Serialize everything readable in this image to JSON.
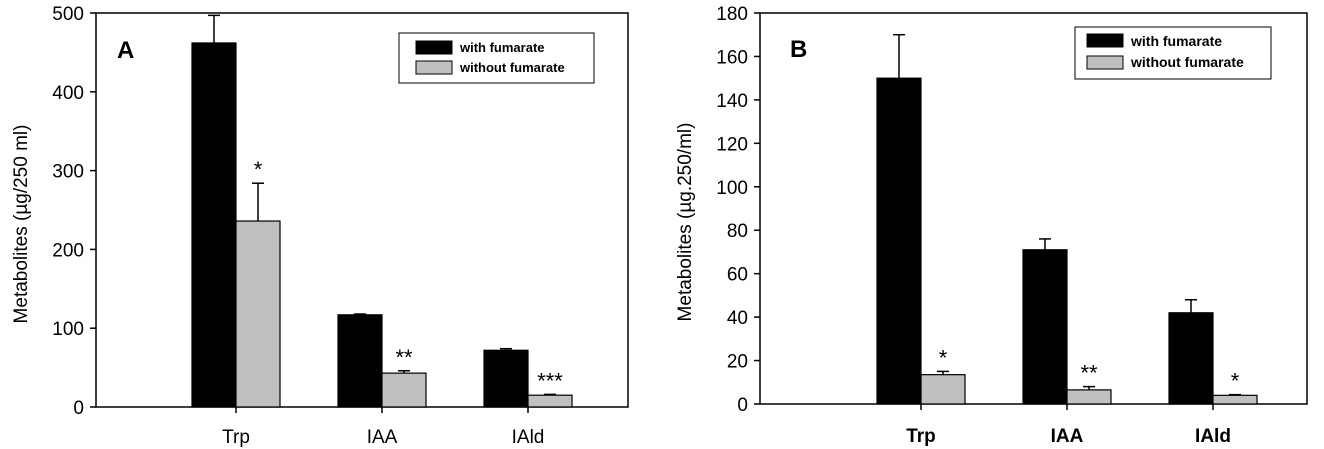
{
  "chart_data": [
    {
      "type": "bar",
      "panel_label": "A",
      "categories": [
        "Trp",
        "IAA",
        "IAld"
      ],
      "ylabel": "Metabolites (µg/250 ml)",
      "ylim": [
        0,
        500
      ],
      "yticks": [
        0,
        100,
        200,
        300,
        400,
        500
      ],
      "grid": false,
      "legend_position": "top-right",
      "series": [
        {
          "name": "with fumarate",
          "color": "#000000",
          "values": [
            462,
            117,
            72
          ],
          "errors": [
            35,
            1,
            2
          ]
        },
        {
          "name": "without fumarate",
          "color": "#c0c0c0",
          "values": [
            236,
            43,
            15
          ],
          "errors": [
            48,
            3,
            1
          ]
        }
      ],
      "annotations": [
        "*",
        "**",
        "***"
      ]
    },
    {
      "type": "bar",
      "panel_label": "B",
      "categories": [
        "Trp",
        "IAA",
        "IAld"
      ],
      "ylabel": "Metabolites (µg.250/ml)",
      "ylim": [
        0,
        180
      ],
      "yticks": [
        0,
        20,
        40,
        60,
        80,
        100,
        120,
        140,
        160,
        180
      ],
      "grid": false,
      "legend_position": "top-right",
      "series": [
        {
          "name": "with  fumarate",
          "color": "#000000",
          "values": [
            150,
            71,
            42
          ],
          "errors": [
            20,
            5,
            6
          ]
        },
        {
          "name": "without fumarate",
          "color": "#c0c0c0",
          "values": [
            13.5,
            6.5,
            4
          ],
          "errors": [
            1.5,
            1.5,
            0.3
          ]
        }
      ],
      "annotations": [
        "*",
        "**",
        "*"
      ]
    }
  ]
}
